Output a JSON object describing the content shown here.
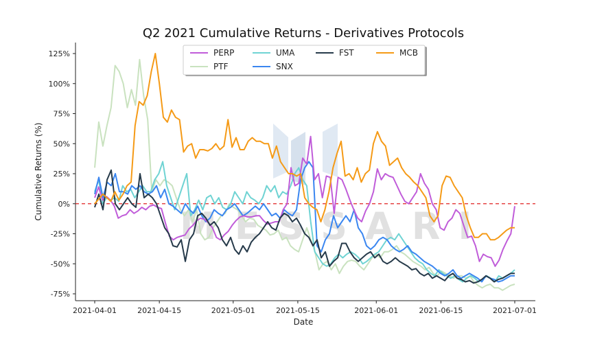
{
  "chart_data": {
    "type": "line",
    "title": "Q2 2021 Cumulative Returns - Derivatives Protocols",
    "xlabel": "Date",
    "ylabel": "Cumulative Returns (%)",
    "xticks": [
      "2021-04-01",
      "2021-04-15",
      "2021-05-01",
      "2021-05-15",
      "2021-06-01",
      "2021-06-15",
      "2021-07-01"
    ],
    "yticks": [
      "125%",
      "100%",
      "75%",
      "50%",
      "25%",
      "0%",
      "-25%",
      "-50%",
      "-75%"
    ],
    "ylim": [
      -80,
      130
    ],
    "xrange_days": [
      0,
      91
    ],
    "reference_line": {
      "y": 0,
      "color": "#e02020",
      "style": "dashed"
    },
    "legend_position": "top-center",
    "watermark": "MESSARI",
    "series": [
      {
        "name": "PERP",
        "color": "#c05cd9",
        "values": [
          5,
          14,
          3,
          6,
          3,
          -2,
          -12,
          -10,
          -9,
          -5,
          -8,
          -6,
          -3,
          -5,
          -2,
          -1,
          -3,
          -4,
          -16,
          -27,
          -30,
          -28,
          -27,
          -26,
          -21,
          -18,
          -14,
          -12,
          -13,
          -16,
          -20,
          -28,
          -30,
          -26,
          -23,
          -18,
          -14,
          -11,
          -10,
          -11,
          -11,
          -10,
          -10,
          -14,
          -17,
          -16,
          -15,
          -15,
          -5,
          0,
          30,
          15,
          17,
          38,
          33,
          56,
          20,
          25,
          5,
          23,
          22,
          -8,
          22,
          20,
          12,
          3,
          -5,
          -12,
          -15,
          -6,
          0,
          10,
          29,
          20,
          25,
          23,
          22,
          15,
          8,
          2,
          0,
          5,
          10,
          25,
          17,
          12,
          0,
          -5,
          -20,
          -22,
          -15,
          -12,
          -5,
          -8,
          -18,
          -28,
          -27,
          -35,
          -48,
          -42,
          -44,
          -45,
          -52,
          -47,
          -38,
          -31,
          -25,
          -2
        ]
      },
      {
        "name": "PTF",
        "color": "#c9e2bf",
        "values": [
          30,
          68,
          48,
          65,
          80,
          115,
          110,
          100,
          80,
          95,
          82,
          120,
          90,
          70,
          10,
          20,
          15,
          20,
          18,
          15,
          5,
          -5,
          -10,
          -5,
          -15,
          -5,
          -25,
          -30,
          -28,
          -20,
          -15,
          -10,
          -8,
          0,
          -3,
          -5,
          -10,
          -15,
          -12,
          -13,
          -18,
          -20,
          -22,
          -26,
          -25,
          -22,
          -30,
          -28,
          -35,
          -38,
          -40,
          -30,
          -20,
          -30,
          -40,
          -55,
          -50,
          -48,
          -55,
          -50,
          -58,
          -52,
          -48,
          -47,
          -48,
          -52,
          -55,
          -50,
          -45,
          -42,
          -45,
          -40,
          -40,
          -38,
          -35,
          -40,
          -42,
          -45,
          -48,
          -50,
          -52,
          -55,
          -53,
          -58,
          -60,
          -56,
          -58,
          -60,
          -62,
          -60,
          -60,
          -62,
          -60,
          -65,
          -68,
          -70,
          -68,
          -67,
          -70,
          -70,
          -72,
          -70,
          -68,
          -67
        ]
      },
      {
        "name": "UMA",
        "color": "#6fd3d3",
        "values": [
          10,
          20,
          0,
          5,
          3,
          5,
          2,
          15,
          10,
          12,
          5,
          10,
          15,
          10,
          10,
          20,
          25,
          35,
          15,
          5,
          -5,
          5,
          15,
          25,
          -10,
          -5,
          3,
          -5,
          5,
          7,
          0,
          5,
          -3,
          -5,
          0,
          10,
          5,
          0,
          10,
          5,
          3,
          0,
          5,
          15,
          10,
          15,
          5,
          10,
          8,
          15,
          25,
          30,
          20,
          15,
          -15,
          -40,
          -45,
          -50,
          -52,
          -50,
          -45,
          -42,
          -45,
          -42,
          -40,
          -42,
          -45,
          -50,
          -48,
          -45,
          -42,
          -40,
          -35,
          -30,
          -28,
          -30,
          -25,
          -30,
          -35,
          -40,
          -45,
          -48,
          -50,
          -55,
          -58,
          -60,
          -55,
          -58,
          -60,
          -62,
          -60,
          -63,
          -65,
          -62,
          -60,
          -62,
          -65,
          -63,
          -60,
          -62,
          -65,
          -60,
          -62,
          -60,
          -58,
          -55
        ]
      },
      {
        "name": "SNX",
        "color": "#3a86f0",
        "values": [
          8,
          22,
          5,
          18,
          15,
          25,
          10,
          10,
          8,
          15,
          12,
          15,
          10,
          8,
          10,
          15,
          5,
          12,
          0,
          -2,
          -5,
          -8,
          0,
          -5,
          -8,
          -2,
          -10,
          -15,
          -12,
          -5,
          -8,
          -10,
          -5,
          -3,
          0,
          -5,
          -10,
          -8,
          -5,
          -2,
          -5,
          0,
          -5,
          -10,
          -8,
          -12,
          -5,
          -8,
          -10,
          -5,
          20,
          30,
          35,
          30,
          -35,
          -40,
          -30,
          -25,
          -10,
          -20,
          -15,
          -10,
          -15,
          -5,
          -20,
          -25,
          -35,
          -38,
          -35,
          -30,
          -28,
          -30,
          -35,
          -38,
          -40,
          -38,
          -35,
          -40,
          -42,
          -45,
          -48,
          -50,
          -52,
          -55,
          -58,
          -60,
          -58,
          -55,
          -60,
          -62,
          -60,
          -58,
          -60,
          -62,
          -65,
          -60,
          -62,
          -63,
          -65,
          -64,
          -62,
          -60,
          -60
        ]
      },
      {
        "name": "FST",
        "color": "#263a4a",
        "values": [
          -3,
          8,
          -5,
          20,
          28,
          0,
          -5,
          0,
          5,
          0,
          -3,
          25,
          5,
          8,
          5,
          0,
          -10,
          -20,
          -25,
          -35,
          -36,
          -30,
          -48,
          -30,
          -25,
          -10,
          -8,
          -12,
          -18,
          -15,
          -20,
          -30,
          -35,
          -28,
          -38,
          -42,
          -35,
          -40,
          -32,
          -28,
          -25,
          -20,
          -15,
          -20,
          -22,
          -12,
          -8,
          -10,
          -15,
          -12,
          -18,
          -25,
          -28,
          -35,
          -30,
          -45,
          -40,
          -52,
          -48,
          -45,
          -33,
          -33,
          -40,
          -45,
          -48,
          -45,
          -42,
          -40,
          -45,
          -42,
          -48,
          -50,
          -48,
          -45,
          -48,
          -50,
          -52,
          -55,
          -54,
          -58,
          -60,
          -58,
          -62,
          -60,
          -62,
          -64,
          -60,
          -58,
          -62,
          -63,
          -65,
          -64,
          -66,
          -65,
          -63,
          -60,
          -62,
          -65,
          -63,
          -62,
          -60,
          -58,
          -58
        ]
      },
      {
        "name": "MCB",
        "color": "#f59a16",
        "values": [
          0,
          4,
          8,
          5,
          2,
          10,
          3,
          8,
          15,
          18,
          65,
          85,
          82,
          90,
          110,
          125,
          100,
          72,
          68,
          78,
          72,
          70,
          43,
          48,
          50,
          38,
          45,
          45,
          44,
          46,
          50,
          45,
          48,
          70,
          47,
          55,
          45,
          45,
          52,
          55,
          52,
          52,
          50,
          50,
          38,
          48,
          35,
          30,
          25,
          25,
          23,
          25,
          5,
          0,
          -3,
          -5,
          -15,
          -5,
          10,
          30,
          42,
          52,
          23,
          25,
          20,
          30,
          18,
          25,
          28,
          50,
          60,
          52,
          48,
          32,
          35,
          38,
          30,
          25,
          22,
          18,
          15,
          10,
          5,
          -10,
          -15,
          -10,
          15,
          23,
          22,
          15,
          10,
          5,
          -10,
          -20,
          -28,
          -28,
          -25,
          -25,
          -30,
          -30,
          -28,
          -25,
          -22,
          -20,
          -20
        ]
      }
    ]
  }
}
